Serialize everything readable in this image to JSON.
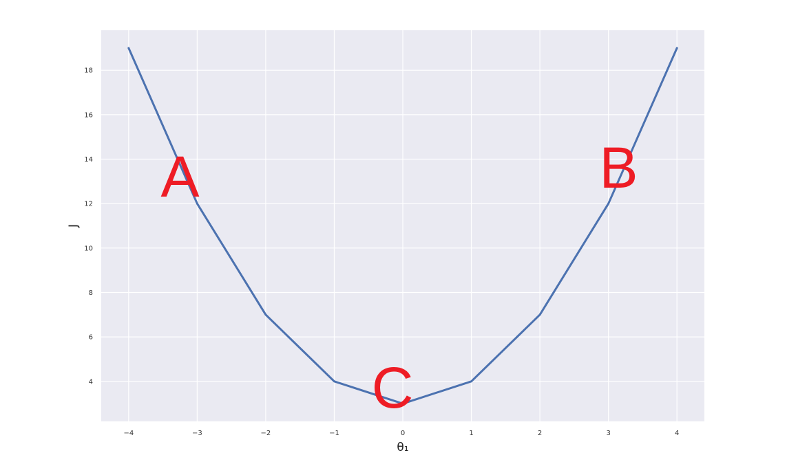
{
  "chart_data": {
    "type": "line",
    "title": "",
    "xlabel": "θ₁",
    "ylabel": "J",
    "x": [
      -4,
      -3,
      -2,
      -1,
      0,
      1,
      2,
      3,
      4
    ],
    "series": [
      {
        "values": [
          19,
          12,
          7,
          4,
          3,
          4,
          7,
          12,
          19
        ],
        "color": "#4c72b0"
      }
    ],
    "xticks": [
      "−4",
      "−3",
      "−2",
      "−1",
      "0",
      "1",
      "2",
      "3",
      "4"
    ],
    "yticks": [
      "4",
      "6",
      "8",
      "10",
      "12",
      "14",
      "16",
      "18"
    ],
    "xtick_values": [
      -4,
      -3,
      -2,
      -1,
      0,
      1,
      2,
      3,
      4
    ],
    "ytick_values": [
      4,
      6,
      8,
      10,
      12,
      14,
      16,
      18
    ],
    "xlim": [
      -4.4,
      4.4
    ],
    "ylim": [
      2.2,
      19.8
    ],
    "grid": true,
    "background": "#eaeaf2",
    "annotations": [
      {
        "text": "A",
        "x": -3.25,
        "y": 13.0
      },
      {
        "text": "B",
        "x": 3.15,
        "y": 13.4
      },
      {
        "text": "C",
        "x": -0.15,
        "y": 3.5
      }
    ],
    "annotation_color": "#ee1c25"
  }
}
